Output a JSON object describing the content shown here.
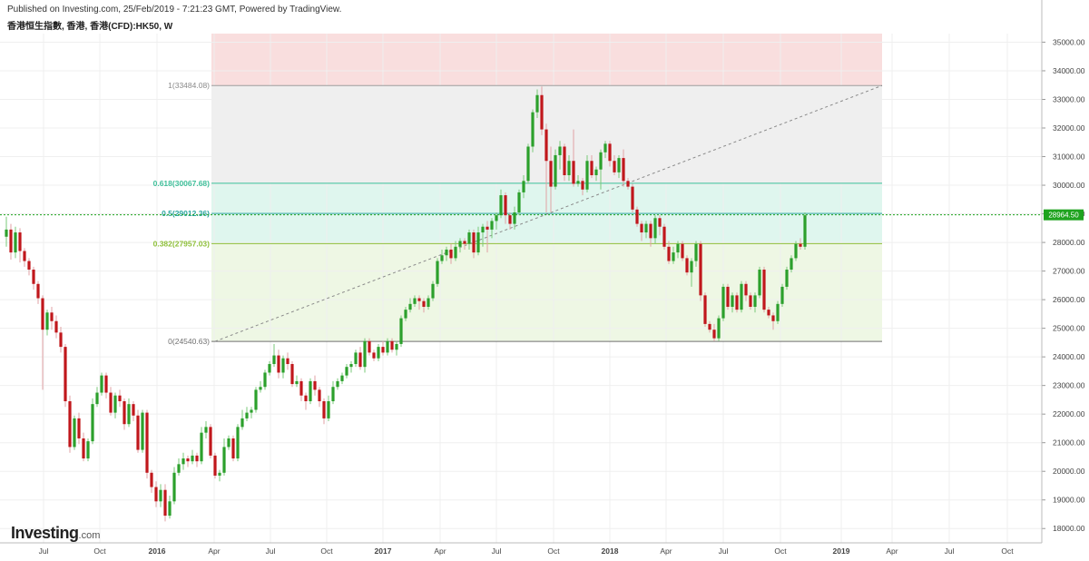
{
  "header": {
    "published": "Published on Investing.com, 25/Feb/2019 - 7:21:23 GMT, Powered by TradingView.",
    "symbol": "香港恒生指數, 香港, 香港(CFD):HK50, W"
  },
  "logo": {
    "brand": "Investing",
    "domain": ".com"
  },
  "colors": {
    "up": "#2ca02c",
    "down": "#c0171c",
    "fib_top_zone": "#f9dede",
    "fib_upper_zone": "#efefef",
    "fib_mid_zone": "#dff6ee",
    "fib_lower_zone": "#eef7e4",
    "price_line": "#1fa31f"
  },
  "chart_data": {
    "type": "candlestick",
    "interval": "W",
    "ylim": [
      17500,
      35300
    ],
    "y_ticks": [
      "18000.00",
      "19000.00",
      "20000.00",
      "21000.00",
      "22000.00",
      "23000.00",
      "24000.00",
      "25000.00",
      "26000.00",
      "27000.00",
      "28000.00",
      "29000.00",
      "30000.00",
      "31000.00",
      "32000.00",
      "33000.00",
      "34000.00",
      "35000.00"
    ],
    "x_ticks": [
      "Jul",
      "Oct",
      "2016",
      "Apr",
      "Jul",
      "Oct",
      "2017",
      "Apr",
      "Jul",
      "Oct",
      "2018",
      "Apr",
      "Jul",
      "Oct",
      "2019",
      "Apr",
      "Jul",
      "Oct"
    ],
    "x_ticks_bold": [
      "2016",
      "2017",
      "2018",
      "2019"
    ],
    "last_price": "28964.50",
    "last_price_value": 28964.5,
    "fibonacci": {
      "start": {
        "week": 46,
        "price": 24540.63
      },
      "end": {
        "week": 76,
        "price": 33484.08
      },
      "levels": [
        {
          "ratio": 1,
          "price": 33484.08,
          "label": "1(33484.08)"
        },
        {
          "ratio": 0.618,
          "price": 30067.68,
          "label": "0.618(30067.68)"
        },
        {
          "ratio": 0.5,
          "price": 29012.36,
          "label": "0.5(29012.36)"
        },
        {
          "ratio": 0.382,
          "price": 27957.03,
          "label": "0.382(27957.03)"
        },
        {
          "ratio": 0,
          "price": 24540.63,
          "label": "0(24540.63)"
        }
      ]
    },
    "candles": [
      [
        28200,
        28450,
        28900,
        27850
      ],
      [
        28450,
        27650,
        28650,
        27400
      ],
      [
        27650,
        28350,
        28550,
        27450
      ],
      [
        28350,
        27700,
        28500,
        27300
      ],
      [
        27700,
        27350,
        27800,
        27150
      ],
      [
        27350,
        27050,
        27450,
        26850
      ],
      [
        27050,
        26550,
        27150,
        26350
      ],
      [
        26550,
        26050,
        26650,
        25850
      ],
      [
        26050,
        24950,
        26150,
        22850
      ],
      [
        24950,
        25550,
        25650,
        24750
      ],
      [
        25550,
        25250,
        25750,
        24950
      ],
      [
        25250,
        24850,
        25450,
        24650
      ],
      [
        24850,
        24350,
        25050,
        24150
      ],
      [
        24350,
        22450,
        24450,
        22250
      ],
      [
        22450,
        20850,
        22650,
        20650
      ],
      [
        20850,
        21850,
        21950,
        20750
      ],
      [
        21850,
        21150,
        22050,
        20950
      ],
      [
        21150,
        20450,
        21350,
        20350
      ],
      [
        20450,
        21050,
        21150,
        20350
      ],
      [
        21050,
        22350,
        22550,
        20950
      ],
      [
        22350,
        22750,
        22950,
        22250
      ],
      [
        22750,
        23350,
        23450,
        22650
      ],
      [
        23350,
        22750,
        23450,
        22550
      ],
      [
        22750,
        22050,
        22950,
        21950
      ],
      [
        22050,
        22650,
        22750,
        21850
      ],
      [
        22650,
        22450,
        22850,
        22250
      ],
      [
        22450,
        21650,
        22550,
        21450
      ],
      [
        21650,
        22350,
        22550,
        21550
      ],
      [
        22350,
        21950,
        22450,
        21750
      ],
      [
        21950,
        20750,
        22150,
        20650
      ],
      [
        20750,
        22050,
        22150,
        20650
      ],
      [
        22050,
        19950,
        22150,
        19750
      ],
      [
        19950,
        19450,
        20050,
        19250
      ],
      [
        19450,
        18950,
        19650,
        18750
      ],
      [
        18950,
        19350,
        19550,
        18750
      ],
      [
        19350,
        18450,
        19550,
        18250
      ],
      [
        18450,
        18950,
        19150,
        18350
      ],
      [
        18950,
        19950,
        20150,
        18850
      ],
      [
        19950,
        20250,
        20450,
        19850
      ],
      [
        20250,
        20450,
        20650,
        20050
      ],
      [
        20450,
        20350,
        20550,
        20150
      ],
      [
        20350,
        20550,
        20750,
        20250
      ],
      [
        20550,
        20350,
        20650,
        20150
      ],
      [
        20350,
        21350,
        21550,
        20250
      ],
      [
        21350,
        21550,
        21750,
        21150
      ],
      [
        21550,
        20550,
        21650,
        20450
      ],
      [
        20550,
        19850,
        20650,
        19750
      ],
      [
        19850,
        19950,
        20050,
        19650
      ],
      [
        19950,
        20850,
        21150,
        19850
      ],
      [
        20850,
        21150,
        21250,
        20750
      ],
      [
        21150,
        20450,
        21250,
        20350
      ],
      [
        20450,
        21550,
        21650,
        20350
      ],
      [
        21550,
        21850,
        22150,
        21450
      ],
      [
        21850,
        22050,
        22250,
        21750
      ],
      [
        22050,
        22150,
        22250,
        21850
      ],
      [
        22150,
        22850,
        22950,
        22050
      ],
      [
        22850,
        22950,
        23150,
        22750
      ],
      [
        22950,
        23450,
        23550,
        22850
      ],
      [
        23450,
        23750,
        23850,
        23350
      ],
      [
        23750,
        24050,
        24450,
        23650
      ],
      [
        24050,
        23450,
        24250,
        23250
      ],
      [
        23450,
        23950,
        24050,
        23250
      ],
      [
        23950,
        23750,
        24150,
        23550
      ],
      [
        23750,
        23050,
        23850,
        22950
      ],
      [
        23050,
        23150,
        23350,
        22950
      ],
      [
        23150,
        22650,
        23250,
        22450
      ],
      [
        22650,
        22450,
        22750,
        22150
      ],
      [
        22450,
        23150,
        23250,
        22350
      ],
      [
        23150,
        22850,
        23350,
        22650
      ],
      [
        22850,
        22450,
        22950,
        22250
      ],
      [
        22450,
        21850,
        22550,
        21650
      ],
      [
        21850,
        22450,
        22650,
        21750
      ],
      [
        22450,
        22950,
        23150,
        22350
      ],
      [
        22950,
        23150,
        23250,
        22850
      ],
      [
        23150,
        23350,
        23450,
        23050
      ],
      [
        23350,
        23650,
        23750,
        23250
      ],
      [
        23650,
        23750,
        23850,
        23450
      ],
      [
        23750,
        24150,
        24250,
        23650
      ],
      [
        24150,
        23650,
        24350,
        23550
      ],
      [
        23650,
        24550,
        24650,
        23450
      ],
      [
        24550,
        24150,
        24650,
        24050
      ],
      [
        24150,
        23950,
        24250,
        23850
      ],
      [
        23950,
        24350,
        24450,
        23850
      ],
      [
        24350,
        24150,
        24550,
        24050
      ],
      [
        24150,
        24550,
        24650,
        24050
      ],
      [
        24550,
        24250,
        24650,
        24150
      ],
      [
        24250,
        24450,
        24550,
        24050
      ],
      [
        24450,
        25350,
        25450,
        24350
      ],
      [
        25350,
        25650,
        25750,
        25250
      ],
      [
        25650,
        25850,
        26050,
        25550
      ],
      [
        25850,
        26050,
        26150,
        25750
      ],
      [
        26050,
        25950,
        26150,
        25650
      ],
      [
        25950,
        25750,
        26050,
        25550
      ],
      [
        25750,
        26050,
        26150,
        25650
      ],
      [
        26050,
        26550,
        26650,
        25950
      ],
      [
        26550,
        27350,
        27450,
        26450
      ],
      [
        27350,
        27550,
        27750,
        27250
      ],
      [
        27550,
        27750,
        27850,
        27350
      ],
      [
        27750,
        27450,
        27950,
        27250
      ],
      [
        27450,
        27850,
        28050,
        27350
      ],
      [
        27850,
        28050,
        28150,
        27650
      ],
      [
        28050,
        27950,
        28150,
        27750
      ],
      [
        27950,
        28350,
        28450,
        27750
      ],
      [
        28350,
        27650,
        28450,
        27450
      ],
      [
        27650,
        28350,
        28550,
        27550
      ],
      [
        28350,
        28550,
        28650,
        27850
      ],
      [
        28550,
        28450,
        28750,
        27650
      ],
      [
        28450,
        28750,
        28850,
        28150
      ],
      [
        28750,
        28950,
        29050,
        28450
      ],
      [
        28950,
        29650,
        29850,
        28850
      ],
      [
        29650,
        28950,
        29750,
        28650
      ],
      [
        28950,
        28650,
        29050,
        28450
      ],
      [
        28650,
        29050,
        29250,
        28450
      ],
      [
        29050,
        29750,
        29850,
        28950
      ],
      [
        29750,
        30150,
        30350,
        29550
      ],
      [
        30150,
        31350,
        31450,
        30050
      ],
      [
        31350,
        32550,
        32650,
        31150
      ],
      [
        32550,
        33150,
        33350,
        32350
      ],
      [
        33150,
        31950,
        33450,
        31750
      ],
      [
        31950,
        30850,
        32150,
        29050
      ],
      [
        30850,
        29950,
        31350,
        29050
      ],
      [
        29950,
        31050,
        31250,
        29850
      ],
      [
        31050,
        31350,
        31550,
        30550
      ],
      [
        31350,
        30350,
        31450,
        30150
      ],
      [
        30350,
        30850,
        31050,
        30150
      ],
      [
        30850,
        30050,
        31950,
        29950
      ],
      [
        30050,
        30150,
        30350,
        29950
      ],
      [
        30150,
        29850,
        30250,
        29650
      ],
      [
        29850,
        30850,
        31050,
        29750
      ],
      [
        30850,
        30350,
        31050,
        30250
      ],
      [
        30350,
        30550,
        30650,
        30150
      ],
      [
        30550,
        31150,
        31250,
        29850
      ],
      [
        31150,
        31450,
        31550,
        30950
      ],
      [
        31450,
        30850,
        31550,
        30650
      ],
      [
        30850,
        30450,
        31050,
        30350
      ],
      [
        30450,
        30950,
        31050,
        30250
      ],
      [
        30950,
        30150,
        31250,
        29950
      ],
      [
        30150,
        29950,
        30250,
        29850
      ],
      [
        29950,
        29150,
        30050,
        29050
      ],
      [
        29150,
        28650,
        29250,
        28550
      ],
      [
        28650,
        28350,
        28750,
        28050
      ],
      [
        28350,
        28650,
        28750,
        28150
      ],
      [
        28650,
        28150,
        28750,
        27850
      ],
      [
        28150,
        28850,
        28950,
        27950
      ],
      [
        28850,
        28550,
        28950,
        28250
      ],
      [
        28550,
        27850,
        28650,
        27750
      ],
      [
        27850,
        27350,
        28050,
        27250
      ],
      [
        27350,
        27650,
        27850,
        27250
      ],
      [
        27650,
        27950,
        28050,
        27450
      ],
      [
        27950,
        27450,
        28050,
        27350
      ],
      [
        27450,
        26950,
        27550,
        26850
      ],
      [
        26950,
        27350,
        27450,
        26450
      ],
      [
        27350,
        27950,
        28050,
        27150
      ],
      [
        27950,
        26150,
        28050,
        25950
      ],
      [
        26150,
        25150,
        26250,
        25050
      ],
      [
        25150,
        24950,
        25250,
        24850
      ],
      [
        24950,
        24650,
        25150,
        24550
      ],
      [
        24650,
        25350,
        25450,
        24550
      ],
      [
        25350,
        26450,
        26550,
        25250
      ],
      [
        26450,
        25750,
        26550,
        25650
      ],
      [
        25750,
        26150,
        26250,
        25550
      ],
      [
        26150,
        25650,
        26250,
        25550
      ],
      [
        25650,
        26550,
        26650,
        25550
      ],
      [
        26550,
        26150,
        26650,
        25950
      ],
      [
        26150,
        25750,
        26250,
        25650
      ],
      [
        25750,
        26150,
        26250,
        25550
      ],
      [
        26150,
        27050,
        27150,
        26050
      ],
      [
        27050,
        25650,
        27150,
        25550
      ],
      [
        25650,
        25450,
        25750,
        25350
      ],
      [
        25450,
        25250,
        25550,
        24950
      ],
      [
        25250,
        25850,
        25950,
        25150
      ],
      [
        25850,
        26450,
        26550,
        25750
      ],
      [
        26450,
        27050,
        27150,
        26350
      ],
      [
        27050,
        27450,
        27550,
        26950
      ],
      [
        27450,
        27950,
        28050,
        27350
      ],
      [
        27950,
        27850,
        28150,
        27750
      ],
      [
        27850,
        28950,
        29050,
        27750
      ]
    ]
  }
}
